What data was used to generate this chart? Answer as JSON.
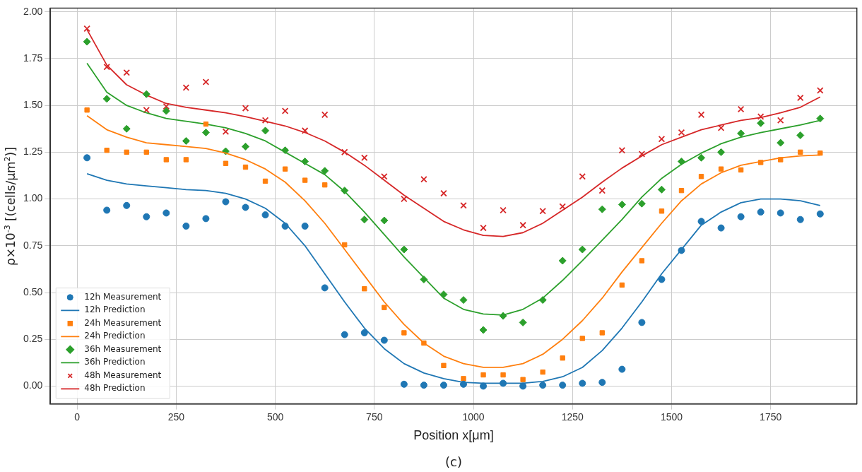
{
  "chart_data": {
    "type": "scatter",
    "xlabel": "Position x[μm]",
    "ylabel": "ρ×10$^{-3}$ [(cells/μm$^{2}$)]",
    "annotations": [
      "(c)"
    ],
    "x": [
      25,
      75,
      125,
      175,
      225,
      275,
      325,
      375,
      425,
      475,
      525,
      575,
      625,
      675,
      725,
      775,
      825,
      875,
      925,
      975,
      1025,
      1075,
      1125,
      1175,
      1225,
      1275,
      1325,
      1375,
      1425,
      1475,
      1525,
      1575,
      1625,
      1675,
      1725,
      1775,
      1825,
      1875
    ],
    "series": [
      {
        "name": "12h Measurement",
        "type": "scatter",
        "marker": "circle",
        "color": "#1f77b4",
        "values": [
          1.22,
          0.94,
          0.965,
          0.905,
          0.925,
          0.855,
          0.895,
          0.985,
          0.955,
          0.915,
          0.855,
          0.855,
          0.525,
          0.275,
          0.285,
          0.245,
          0.01,
          0.005,
          0.005,
          0.01,
          0.0,
          0.015,
          0.0,
          0.005,
          0.005,
          0.015,
          0.02,
          0.09,
          0.34,
          0.57,
          0.725,
          0.88,
          0.845,
          0.905,
          0.93,
          0.925,
          0.89,
          0.92
        ]
      },
      {
        "name": "12h Prediction",
        "type": "line",
        "color": "#1f77b4",
        "values": [
          1.135,
          1.1,
          1.08,
          1.07,
          1.06,
          1.05,
          1.045,
          1.03,
          1.0,
          0.95,
          0.87,
          0.75,
          0.6,
          0.45,
          0.31,
          0.2,
          0.12,
          0.07,
          0.04,
          0.02,
          0.015,
          0.015,
          0.015,
          0.025,
          0.05,
          0.1,
          0.19,
          0.31,
          0.45,
          0.6,
          0.73,
          0.86,
          0.93,
          0.98,
          1.0,
          1.0,
          0.99,
          0.965
        ]
      },
      {
        "name": "24h Measurement",
        "type": "scatter",
        "marker": "square",
        "color": "#ff7f0e",
        "values": [
          1.475,
          1.26,
          1.25,
          1.25,
          1.21,
          1.21,
          1.4,
          1.19,
          1.17,
          1.095,
          1.16,
          1.1,
          1.075,
          0.755,
          0.52,
          0.42,
          0.285,
          0.23,
          0.11,
          0.04,
          0.06,
          0.06,
          0.035,
          0.075,
          0.15,
          0.255,
          0.285,
          0.54,
          0.67,
          0.935,
          1.045,
          1.12,
          1.16,
          1.155,
          1.195,
          1.21,
          1.25,
          1.245
        ]
      },
      {
        "name": "24h Prediction",
        "type": "line",
        "color": "#ff7f0e",
        "values": [
          1.445,
          1.37,
          1.33,
          1.3,
          1.29,
          1.28,
          1.27,
          1.245,
          1.21,
          1.16,
          1.09,
          0.99,
          0.87,
          0.73,
          0.59,
          0.45,
          0.33,
          0.23,
          0.16,
          0.12,
          0.1,
          0.1,
          0.12,
          0.17,
          0.25,
          0.35,
          0.47,
          0.61,
          0.74,
          0.87,
          0.99,
          1.08,
          1.14,
          1.18,
          1.2,
          1.22,
          1.23,
          1.235
        ]
      },
      {
        "name": "36h Measurement",
        "type": "scatter",
        "marker": "diamond",
        "color": "#2ca02c",
        "values": [
          1.84,
          1.535,
          1.375,
          1.56,
          1.47,
          1.31,
          1.355,
          1.255,
          1.28,
          1.365,
          1.26,
          1.2,
          1.15,
          1.045,
          0.89,
          0.885,
          0.73,
          0.57,
          0.49,
          0.46,
          0.3,
          0.375,
          0.34,
          0.46,
          0.67,
          0.73,
          0.945,
          0.97,
          0.975,
          1.05,
          1.2,
          1.22,
          1.25,
          1.35,
          1.405,
          1.3,
          1.34,
          1.43
        ]
      },
      {
        "name": "36h Prediction",
        "type": "line",
        "color": "#2ca02c",
        "values": [
          1.725,
          1.57,
          1.5,
          1.46,
          1.43,
          1.415,
          1.4,
          1.38,
          1.35,
          1.31,
          1.25,
          1.19,
          1.13,
          1.04,
          0.93,
          0.81,
          0.69,
          0.58,
          0.47,
          0.41,
          0.385,
          0.38,
          0.41,
          0.47,
          0.565,
          0.67,
          0.78,
          0.89,
          1.01,
          1.11,
          1.185,
          1.245,
          1.295,
          1.33,
          1.355,
          1.375,
          1.395,
          1.42
        ]
      },
      {
        "name": "48h Measurement",
        "type": "scatter",
        "marker": "cross",
        "color": "#d62728",
        "values": [
          1.91,
          1.705,
          1.675,
          1.475,
          1.495,
          1.595,
          1.625,
          1.36,
          1.485,
          1.42,
          1.47,
          1.365,
          1.45,
          1.25,
          1.22,
          1.12,
          1.0,
          1.105,
          1.03,
          0.965,
          0.845,
          0.94,
          0.86,
          0.935,
          0.96,
          1.12,
          1.045,
          1.26,
          1.24,
          1.32,
          1.355,
          1.45,
          1.38,
          1.48,
          1.44,
          1.42,
          1.54,
          1.58
        ]
      },
      {
        "name": "48h Prediction",
        "type": "line",
        "color": "#d62728",
        "values": [
          1.905,
          1.715,
          1.61,
          1.555,
          1.51,
          1.49,
          1.475,
          1.46,
          1.44,
          1.415,
          1.39,
          1.355,
          1.31,
          1.25,
          1.18,
          1.1,
          1.02,
          0.95,
          0.88,
          0.835,
          0.805,
          0.8,
          0.82,
          0.87,
          0.94,
          1.01,
          1.09,
          1.165,
          1.23,
          1.29,
          1.33,
          1.37,
          1.395,
          1.42,
          1.435,
          1.46,
          1.49,
          1.545
        ]
      }
    ],
    "xlim": [
      -67.5,
      1967.5
    ],
    "xticks": [
      0,
      250,
      500,
      750,
      1000,
      1250,
      1500,
      1750
    ],
    "ylim": [
      -0.095,
      2.02
    ],
    "yticks": [
      {
        "value": 0,
        "label": "0.00"
      },
      {
        "value": 0.25,
        "label": "0.25"
      },
      {
        "value": 0.5,
        "label": "0.50"
      },
      {
        "value": 0.75,
        "label": "0.75"
      },
      {
        "value": 1,
        "label": "1.00"
      },
      {
        "value": 1.25,
        "label": "1.25"
      },
      {
        "value": 1.5,
        "label": "1.50"
      },
      {
        "value": 1.75,
        "label": "1.75"
      },
      {
        "value": 2,
        "label": "2.00"
      }
    ],
    "grid": true,
    "legend": "bottom left"
  }
}
